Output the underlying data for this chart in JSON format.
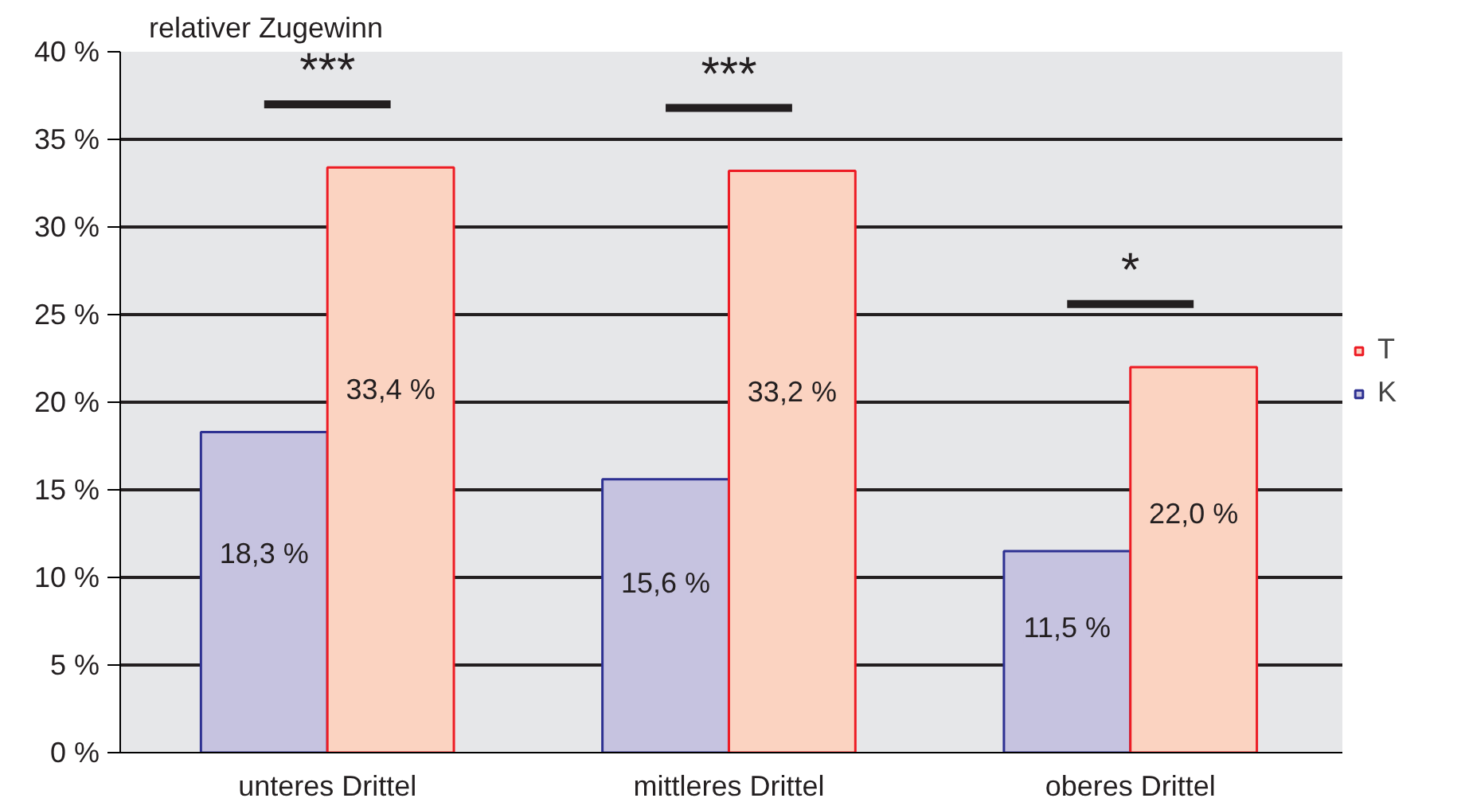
{
  "chart_data": {
    "type": "bar",
    "ylabel": "relativer Zugewinn",
    "categories": [
      "unteres Drittel",
      "mittleres Drittel",
      "oberes Drittel"
    ],
    "series": [
      {
        "name": "K",
        "color": "#c6c3e0",
        "values": [
          18.3,
          15.6,
          11.5
        ],
        "value_labels": [
          "18,3 %",
          "15,6 %",
          "11,5 %"
        ]
      },
      {
        "name": "T",
        "color": "#fbd3c1",
        "values": [
          33.4,
          33.2,
          22.0
        ],
        "value_labels": [
          "33,4 %",
          "33,2 %",
          "22,0 %"
        ]
      }
    ],
    "ylim": [
      0,
      40
    ],
    "yticks": [
      {
        "value": 0,
        "label": "0 %"
      },
      {
        "value": 5,
        "label": "5 %"
      },
      {
        "value": 10,
        "label": "10 %"
      },
      {
        "value": 15,
        "label": "15 %"
      },
      {
        "value": 20,
        "label": "20 %"
      },
      {
        "value": 25,
        "label": "25 %"
      },
      {
        "value": 30,
        "label": "30 %"
      },
      {
        "value": 35,
        "label": "35 %"
      },
      {
        "value": 40,
        "label": "40 %"
      }
    ],
    "grid": "y",
    "legend": "right",
    "annotations": [
      "***",
      "***",
      "*"
    ]
  }
}
